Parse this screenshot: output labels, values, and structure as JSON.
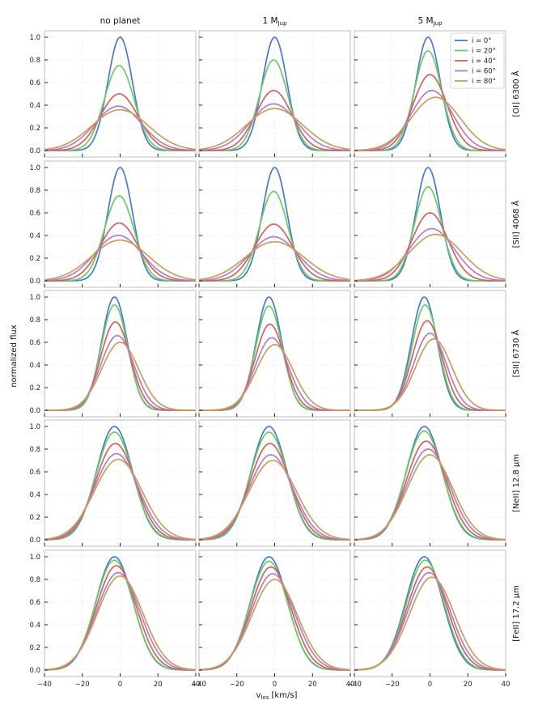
{
  "chart_data": {
    "type": "line",
    "column_titles": [
      {
        "main": "no planet",
        "sub": ""
      },
      {
        "main": "1 M",
        "sub": "Jup"
      },
      {
        "main": "5 M",
        "sub": "Jup"
      }
    ],
    "row_labels": [
      "[OI] 6300 Å",
      "[SII] 4068 Å",
      "[SII] 6730 Å",
      "[NeII] 12.8 μm",
      "[FeII] 17.2 μm"
    ],
    "ylabel": "normalized flux",
    "xlabel": {
      "main": "v",
      "sub": "los",
      "rest": " [km/s]"
    },
    "xlim": [
      -40,
      40
    ],
    "ylim": [
      0,
      1
    ],
    "x_ticks": [
      -40,
      -20,
      0,
      20,
      40
    ],
    "x_tick_labels": [
      "−40",
      "−20",
      "0",
      "20",
      "40"
    ],
    "y_ticks": [
      0,
      0.2,
      0.4,
      0.6,
      0.8,
      1.0
    ],
    "y_tick_labels": [
      "0.0",
      "0.2",
      "0.4",
      "0.6",
      "0.8",
      "1.0"
    ],
    "grid": true,
    "legend": {
      "placement": "top-right of panel row 1, column 3",
      "entries": [
        "i = 0°",
        "i = 20°",
        "i = 40°",
        "i = 60°",
        "i = 80°"
      ]
    },
    "series_colors": [
      "#4878d0",
      "#6acc64",
      "#d65f5f",
      "#b47cc7",
      "#c4a05a"
    ],
    "profile_shape": {
      "description": "two-component gaussian line profiles per panel; parameters in km/s",
      "panels": [
        [
          [
            {
              "peak": 1.0,
              "center": 0,
              "width": 6.5,
              "split": 0
            },
            {
              "peak": 0.75,
              "center": -0.5,
              "width": 7.8,
              "split": 0
            },
            {
              "peak": 0.5,
              "center": -0.5,
              "width": 10,
              "split": 0
            },
            {
              "peak": 0.38,
              "center": -1,
              "width": 12,
              "split": 3
            },
            {
              "peak": 0.34,
              "center": 0,
              "width": 14,
              "split": 5
            }
          ],
          [
            {
              "peak": 1.0,
              "center": 0,
              "width": 6.5,
              "split": 0
            },
            {
              "peak": 0.8,
              "center": -0.5,
              "width": 7.5,
              "split": 0
            },
            {
              "peak": 0.53,
              "center": -0.5,
              "width": 9.5,
              "split": 0
            },
            {
              "peak": 0.4,
              "center": -0.5,
              "width": 12,
              "split": 3
            },
            {
              "peak": 0.35,
              "center": 0,
              "width": 14,
              "split": 5
            }
          ],
          [
            {
              "peak": 1.0,
              "center": -1,
              "width": 6.5,
              "split": 0
            },
            {
              "peak": 0.88,
              "center": -1,
              "width": 7.2,
              "split": 0
            },
            {
              "peak": 0.67,
              "center": 0,
              "width": 9,
              "split": 0
            },
            {
              "peak": 0.53,
              "center": 1,
              "width": 11,
              "split": 0
            },
            {
              "peak": 0.47,
              "center": 3,
              "width": 13,
              "split": 0
            }
          ]
        ],
        [
          [
            {
              "peak": 1.0,
              "center": 0,
              "width": 6.5,
              "split": 0
            },
            {
              "peak": 0.75,
              "center": -0.5,
              "width": 7.8,
              "split": 0
            },
            {
              "peak": 0.51,
              "center": -0.5,
              "width": 10,
              "split": 0
            },
            {
              "peak": 0.39,
              "center": -1,
              "width": 12,
              "split": 3
            },
            {
              "peak": 0.34,
              "center": 0,
              "width": 14,
              "split": 5
            }
          ],
          [
            {
              "peak": 1.0,
              "center": 0,
              "width": 6.5,
              "split": 0
            },
            {
              "peak": 0.79,
              "center": -0.5,
              "width": 7.5,
              "split": 0
            },
            {
              "peak": 0.5,
              "center": -0.5,
              "width": 10,
              "split": 0
            },
            {
              "peak": 0.37,
              "center": -0.5,
              "width": 12,
              "split": 4
            },
            {
              "peak": 0.32,
              "center": 0,
              "width": 14,
              "split": 6
            }
          ],
          [
            {
              "peak": 1.0,
              "center": -1,
              "width": 6.5,
              "split": 0
            },
            {
              "peak": 0.83,
              "center": -1,
              "width": 7.2,
              "split": 0
            },
            {
              "peak": 0.6,
              "center": 0,
              "width": 9.5,
              "split": 0
            },
            {
              "peak": 0.46,
              "center": 1,
              "width": 12,
              "split": 0
            },
            {
              "peak": 0.41,
              "center": 3,
              "width": 14,
              "split": 0
            }
          ]
        ],
        [
          [
            {
              "peak": 1.0,
              "center": -3,
              "width": 6.8,
              "split": 0
            },
            {
              "peak": 0.93,
              "center": -3,
              "width": 7,
              "split": 0
            },
            {
              "peak": 0.78,
              "center": -2.5,
              "width": 7.8,
              "split": 0
            },
            {
              "peak": 0.66,
              "center": -1.5,
              "width": 8.8,
              "split": 0
            },
            {
              "peak": 0.6,
              "center": 0,
              "width": 9.8,
              "split": 0
            }
          ],
          [
            {
              "peak": 1.0,
              "center": -3,
              "width": 6.8,
              "split": 0
            },
            {
              "peak": 0.92,
              "center": -3,
              "width": 7,
              "split": 0
            },
            {
              "peak": 0.76,
              "center": -2.5,
              "width": 7.8,
              "split": 0
            },
            {
              "peak": 0.64,
              "center": -1.5,
              "width": 8.8,
              "split": 0
            },
            {
              "peak": 0.58,
              "center": 0,
              "width": 9.8,
              "split": 0
            }
          ],
          [
            {
              "peak": 1.0,
              "center": -3,
              "width": 6.8,
              "split": 0
            },
            {
              "peak": 0.93,
              "center": -2.5,
              "width": 7,
              "split": 0
            },
            {
              "peak": 0.79,
              "center": -1.5,
              "width": 7.8,
              "split": 0
            },
            {
              "peak": 0.68,
              "center": 0,
              "width": 8.6,
              "split": 0
            },
            {
              "peak": 0.63,
              "center": 2,
              "width": 9.6,
              "split": 0
            }
          ]
        ],
        [
          [
            {
              "peak": 1.0,
              "center": -3,
              "width": 9.5,
              "split": 0
            },
            {
              "peak": 0.95,
              "center": -3,
              "width": 9.8,
              "split": 0
            },
            {
              "peak": 0.85,
              "center": -2.5,
              "width": 10.6,
              "split": 0
            },
            {
              "peak": 0.76,
              "center": -2,
              "width": 11.6,
              "split": 0
            },
            {
              "peak": 0.71,
              "center": -1,
              "width": 12.6,
              "split": 0
            }
          ],
          [
            {
              "peak": 1.0,
              "center": -3,
              "width": 9.5,
              "split": 0
            },
            {
              "peak": 0.95,
              "center": -3,
              "width": 9.8,
              "split": 0
            },
            {
              "peak": 0.85,
              "center": -2.5,
              "width": 10.6,
              "split": 0
            },
            {
              "peak": 0.75,
              "center": -2,
              "width": 11.6,
              "split": 0
            },
            {
              "peak": 0.7,
              "center": -1,
              "width": 12.6,
              "split": 0
            }
          ],
          [
            {
              "peak": 1.0,
              "center": -3,
              "width": 9.5,
              "split": 0
            },
            {
              "peak": 0.96,
              "center": -3,
              "width": 9.8,
              "split": 0
            },
            {
              "peak": 0.87,
              "center": -2,
              "width": 10.5,
              "split": 0
            },
            {
              "peak": 0.8,
              "center": -1,
              "width": 11.3,
              "split": 0
            },
            {
              "peak": 0.75,
              "center": 0,
              "width": 12,
              "split": 0
            }
          ]
        ],
        [
          [
            {
              "peak": 1.0,
              "center": -3,
              "width": 9.8,
              "split": 0
            },
            {
              "peak": 0.97,
              "center": -3,
              "width": 10,
              "split": 0
            },
            {
              "peak": 0.92,
              "center": -2,
              "width": 10.6,
              "split": 0
            },
            {
              "peak": 0.86,
              "center": -1,
              "width": 11.4,
              "split": 0
            },
            {
              "peak": 0.83,
              "center": 0,
              "width": 12,
              "split": 0
            }
          ],
          [
            {
              "peak": 1.0,
              "center": -3,
              "width": 9.8,
              "split": 0
            },
            {
              "peak": 0.96,
              "center": -3,
              "width": 10,
              "split": 0
            },
            {
              "peak": 0.91,
              "center": -2,
              "width": 10.6,
              "split": 0
            },
            {
              "peak": 0.85,
              "center": -1,
              "width": 11.4,
              "split": 0
            },
            {
              "peak": 0.8,
              "center": 0,
              "width": 12,
              "split": 0
            }
          ],
          [
            {
              "peak": 1.0,
              "center": -3,
              "width": 9.8,
              "split": 0
            },
            {
              "peak": 0.97,
              "center": -2.5,
              "width": 10,
              "split": 0
            },
            {
              "peak": 0.91,
              "center": -1.5,
              "width": 10.6,
              "split": 0
            },
            {
              "peak": 0.86,
              "center": -0.5,
              "width": 11.2,
              "split": 0
            },
            {
              "peak": 0.82,
              "center": 1,
              "width": 11.8,
              "split": 0
            }
          ]
        ]
      ]
    }
  }
}
